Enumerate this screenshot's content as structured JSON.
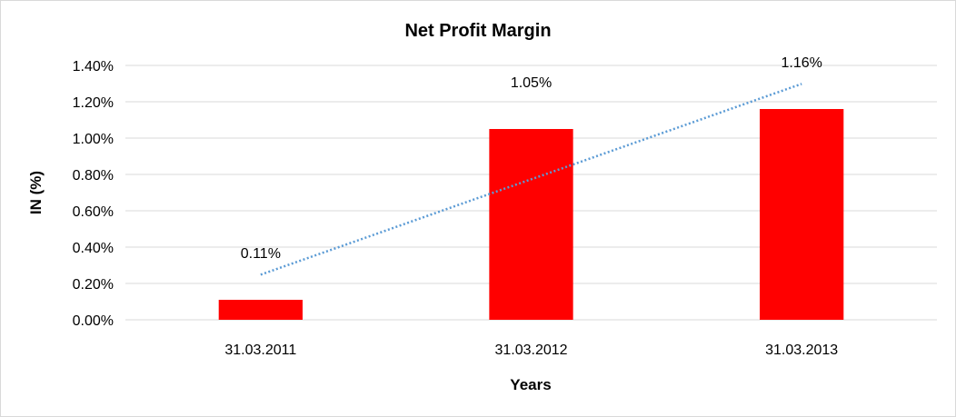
{
  "chart_data": {
    "type": "bar",
    "title": "Net Profit Margin",
    "xlabel": "Years",
    "ylabel": "IN (%)",
    "categories": [
      "31.03.2011",
      "31.03.2012",
      "31.03.2013"
    ],
    "values": [
      0.11,
      1.05,
      1.16
    ],
    "data_labels": [
      "0.11%",
      "1.05%",
      "1.16%"
    ],
    "ylim": [
      0,
      1.4
    ],
    "yticks": [
      0,
      0.2,
      0.4,
      0.6,
      0.8,
      1.0,
      1.2,
      1.4
    ],
    "ytick_labels": [
      "0.00%",
      "0.20%",
      "0.40%",
      "0.60%",
      "0.80%",
      "1.00%",
      "1.20%",
      "1.40%"
    ],
    "grid": true,
    "legend": "none",
    "bar_color": "#ff0000",
    "trendline": {
      "type": "linear",
      "style": "dotted",
      "color": "#5b9bd5"
    }
  }
}
